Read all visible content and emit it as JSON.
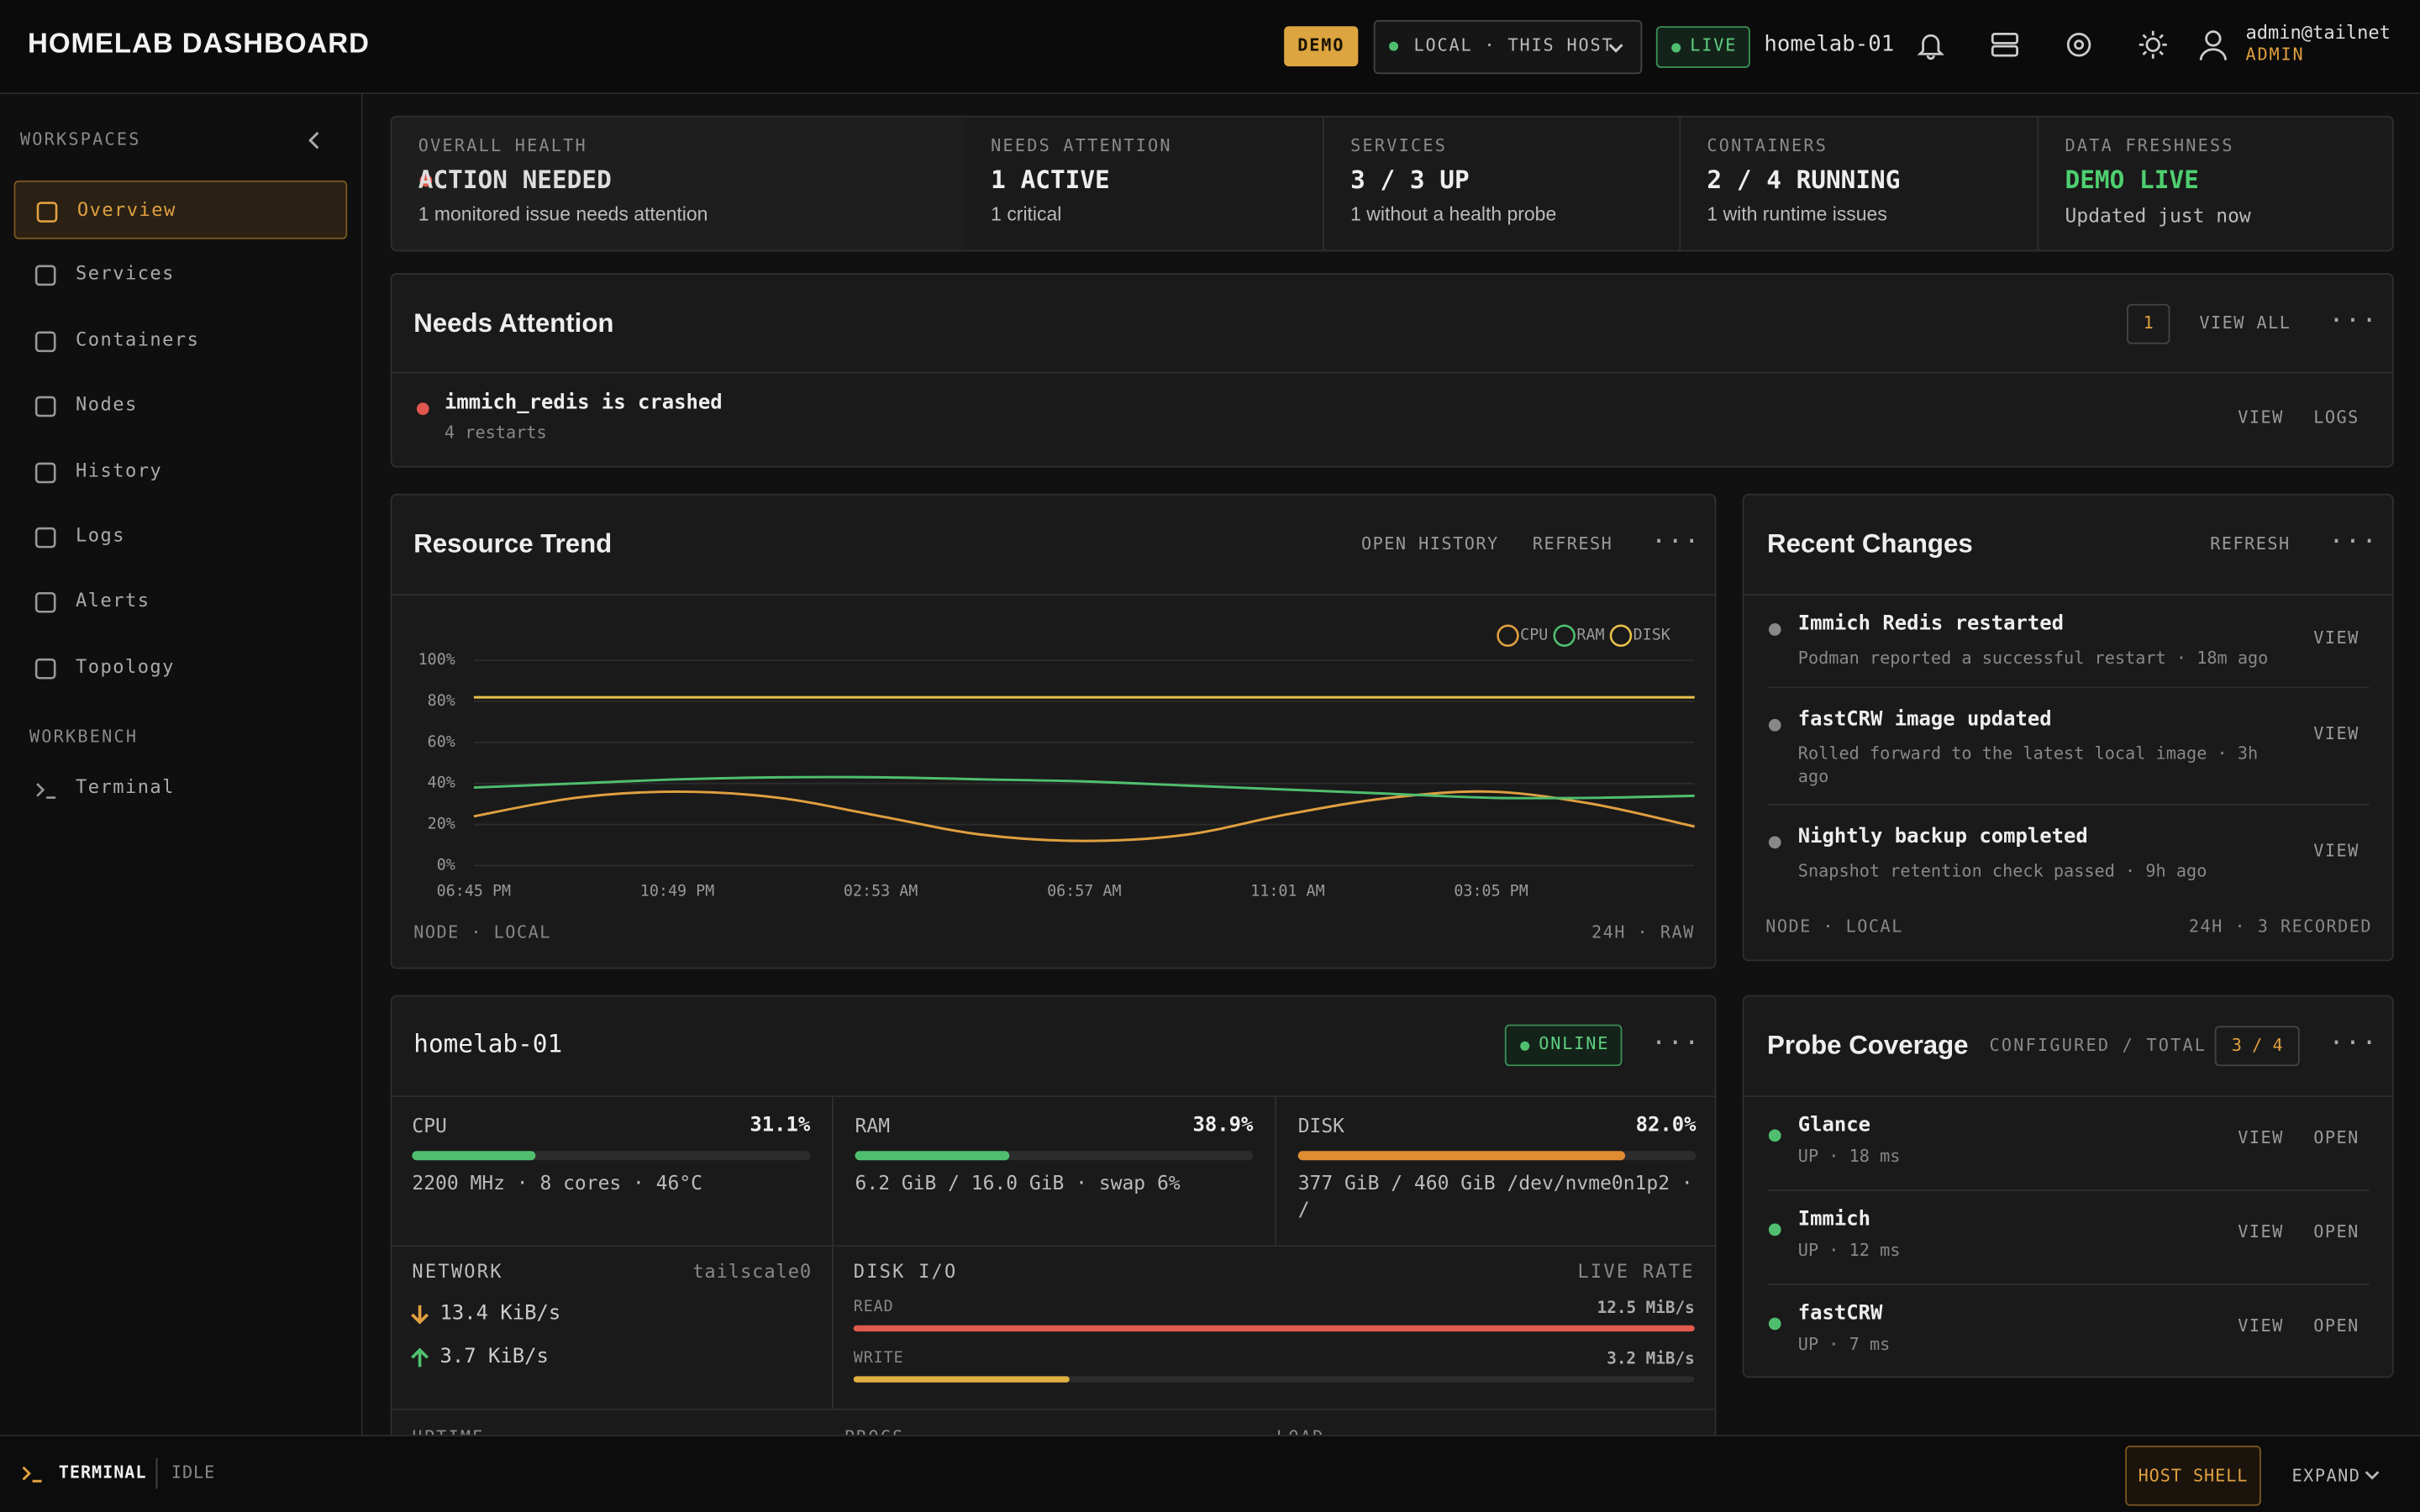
{
  "header": {
    "title": "HOMELAB DASHBOARD",
    "demo_badge": "DEMO",
    "scope": "LOCAL · THIS HOST",
    "live_badge": "LIVE",
    "host": "homelab-01",
    "user": "admin@tailnet",
    "role": "ADMIN"
  },
  "sidebar": {
    "section": "WORKSPACES",
    "items": [
      "Overview",
      "Services",
      "Containers",
      "Nodes",
      "History",
      "Logs",
      "Alerts",
      "Topology"
    ],
    "workbench": "WORKBENCH",
    "workbench_items": [
      "Terminal"
    ]
  },
  "summary": [
    {
      "label": "OVERALL HEALTH",
      "value": "ACTION NEEDED",
      "note": "1 monitored issue needs attention"
    },
    {
      "label": "NEEDS ATTENTION",
      "value": "1 ACTIVE",
      "note": "1 critical"
    },
    {
      "label": "SERVICES",
      "value": "3 / 3 UP",
      "note": "1 without a health probe"
    },
    {
      "label": "CONTAINERS",
      "value": "2 / 4 RUNNING",
      "note": "1 with runtime issues"
    },
    {
      "label": "DATA FRESHNESS",
      "value": "DEMO LIVE",
      "note": "Updated just now"
    }
  ],
  "attention": {
    "title": "Needs Attention",
    "count": 1,
    "view_all": "VIEW ALL",
    "items": [
      {
        "title": "immich_redis is crashed",
        "detail": "4 restarts",
        "actions": [
          "VIEW",
          "LOGS"
        ]
      }
    ]
  },
  "trend": {
    "title": "Resource Trend",
    "actions": [
      "OPEN HISTORY",
      "REFRESH"
    ],
    "chart_data": {
      "type": "line",
      "categories": [
        "06:45 PM",
        null,
        "10:49 PM",
        null,
        "02:53 AM",
        null,
        "06:57 AM",
        null,
        "11:01 AM",
        null,
        "03:05 PM",
        null,
        null
      ],
      "series": [
        {
          "name": "CPU",
          "color": "#e0a040",
          "values": [
            24,
            33,
            36,
            33,
            24,
            15,
            12,
            15,
            25,
            33,
            36,
            30,
            19
          ]
        },
        {
          "name": "RAM",
          "color": "#4fbf6f",
          "values": [
            38,
            40,
            42,
            43,
            43,
            42,
            41,
            39,
            37,
            35,
            33,
            33,
            34
          ]
        },
        {
          "name": "DISK",
          "color": "#e8c04a",
          "values": [
            82,
            82,
            82,
            82,
            82,
            82,
            82,
            82,
            82,
            82,
            82,
            82,
            82
          ]
        }
      ],
      "ylim": [
        0,
        100
      ],
      "yticks": [
        {
          "value": 0,
          "label": "0%"
        },
        {
          "value": 20,
          "label": "20%"
        },
        {
          "value": 40,
          "label": "40%"
        },
        {
          "value": 60,
          "label": "60%"
        },
        {
          "value": 80,
          "label": "80%"
        },
        {
          "value": 100,
          "label": "100%"
        }
      ],
      "grid": true,
      "legend": "top-right"
    },
    "footer_left": "NODE · LOCAL",
    "footer_right": "24H · RAW"
  },
  "changes": {
    "title": "Recent Changes",
    "action": "REFRESH",
    "items": [
      {
        "title": "Immich Redis restarted",
        "detail": "Podman reported a successful restart · 18m ago",
        "action": "VIEW"
      },
      {
        "title": "fastCRW image updated",
        "detail": "Rolled forward to the latest local image · 3h ago",
        "action": "VIEW"
      },
      {
        "title": "Nightly backup completed",
        "detail": "Snapshot retention check passed · 9h ago",
        "action": "VIEW"
      }
    ],
    "footer_left": "NODE · LOCAL",
    "footer_right": "24H · 3 RECORDED"
  },
  "node": {
    "name": "homelab-01",
    "status": "ONLINE",
    "metrics": [
      {
        "label": "CPU",
        "value": 31.1,
        "value_label": "31.1%",
        "detail": "2200 MHz · 8 cores · 46°C",
        "color": "#4fbf6f"
      },
      {
        "label": "RAM",
        "value": 38.9,
        "value_label": "38.9%",
        "detail": "6.2 GiB / 16.0 GiB · swap 6%",
        "color": "#4fbf6f"
      },
      {
        "label": "DISK",
        "value": 82.0,
        "value_label": "82.0%",
        "detail": "377 GiB / 460 GiB /dev/nvme0n1p2 · /",
        "color": "#e08c30"
      }
    ],
    "network": {
      "label": "NETWORK",
      "interface": "tailscale0",
      "down": "13.4 KiB/s",
      "up": "3.7 KiB/s"
    },
    "disk_io": {
      "label": "DISK I/O",
      "mode": "LIVE RATE",
      "rows": [
        {
          "label": "READ",
          "value": 12.5,
          "value_label": "12.5 MiB/s",
          "color": "#e05a4e"
        },
        {
          "label": "WRITE",
          "value": 3.2,
          "value_label": "3.2 MiB/s",
          "color": "#e0b040"
        }
      ]
    },
    "stats": [
      "UPTIME",
      "PROCS",
      "LOAD"
    ]
  },
  "probes": {
    "title": "Probe Coverage",
    "label": "CONFIGURED / TOTAL",
    "count": "3 / 4",
    "items": [
      {
        "name": "Glance",
        "detail": "UP · 18 ms",
        "actions": [
          "VIEW",
          "OPEN"
        ]
      },
      {
        "name": "Immich",
        "detail": "UP · 12 ms",
        "actions": [
          "VIEW",
          "OPEN"
        ]
      },
      {
        "name": "fastCRW",
        "detail": "UP · 7 ms",
        "actions": [
          "VIEW",
          "OPEN"
        ]
      }
    ]
  },
  "terminal": {
    "label": "TERMINAL",
    "state": "IDLE",
    "shell": "HOST SHELL",
    "expand": "EXPAND"
  }
}
